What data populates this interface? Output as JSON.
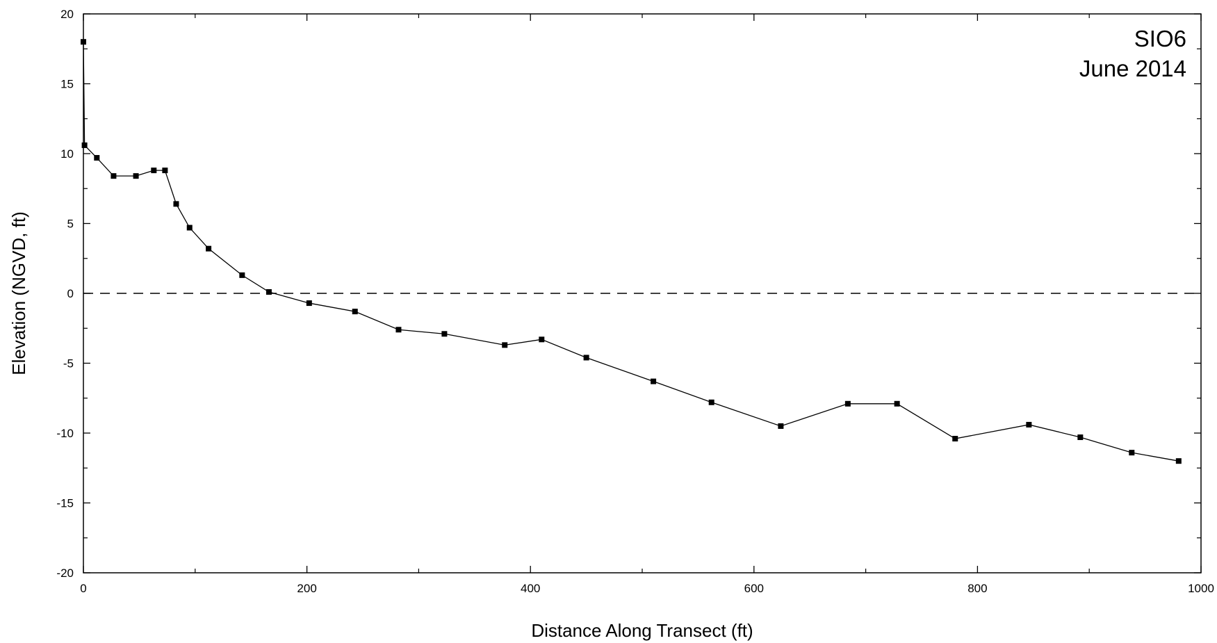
{
  "chart_data": {
    "type": "line",
    "title": "",
    "xlabel": "Distance Along Transect (ft)",
    "ylabel": "Elevation (NGVD, ft)",
    "xlim": [
      0,
      1000
    ],
    "ylim": [
      -20,
      20
    ],
    "x_ticks": [
      0,
      200,
      400,
      600,
      800,
      1000
    ],
    "x_tick_labels": [
      "0",
      "200",
      "400",
      "600",
      "800",
      "1000"
    ],
    "y_ticks": [
      20,
      15,
      10,
      5,
      0,
      -5,
      -10,
      -15,
      -20
    ],
    "y_tick_labels": [
      "20",
      "15",
      "10",
      "5",
      "0",
      "-5",
      "-10",
      "-15",
      "-20"
    ],
    "grid": false,
    "annotations": [
      "SIO6",
      "June 2014"
    ],
    "reference_line": {
      "y": 0,
      "style": "dashed"
    },
    "series": [
      {
        "marker": "square",
        "color": "#000000",
        "points": [
          [
            0,
            18.0
          ],
          [
            1,
            10.6
          ],
          [
            12,
            9.7
          ],
          [
            27,
            8.4
          ],
          [
            47,
            8.4
          ],
          [
            63,
            8.8
          ],
          [
            73,
            8.8
          ],
          [
            83,
            6.4
          ],
          [
            95,
            4.7
          ],
          [
            112,
            3.2
          ],
          [
            142,
            1.3
          ],
          [
            166,
            0.1
          ],
          [
            202,
            -0.7
          ],
          [
            243,
            -1.3
          ],
          [
            282,
            -2.6
          ],
          [
            323,
            -2.9
          ],
          [
            377,
            -3.7
          ],
          [
            410,
            -3.3
          ],
          [
            450,
            -4.6
          ],
          [
            510,
            -6.3
          ],
          [
            562,
            -7.8
          ],
          [
            624,
            -9.5
          ],
          [
            684,
            -7.9
          ],
          [
            728,
            -7.9
          ],
          [
            780,
            -10.4
          ],
          [
            846,
            -9.4
          ],
          [
            892,
            -10.3
          ],
          [
            938,
            -11.4
          ],
          [
            980,
            -12.0
          ]
        ]
      }
    ]
  }
}
